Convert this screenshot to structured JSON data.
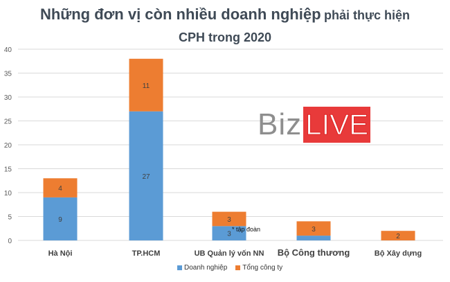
{
  "chart_data": {
    "type": "bar",
    "stacked": true,
    "title_main": "Những đơn vị còn nhiều doanh nghiệp",
    "title_rest": "phải thực hiện",
    "title_line2": "CPH trong 2020",
    "categories": [
      "Hà Nội",
      "TP.HCM",
      "UB Quản lý vốn NN",
      "Bộ Công thương",
      "Bộ Xây dựng"
    ],
    "series": [
      {
        "name": "Doanh nghiệp",
        "color": "#5b9bd5",
        "values": [
          9,
          27,
          3,
          1,
          0
        ],
        "labels": [
          "9",
          "27",
          "3",
          "",
          ""
        ]
      },
      {
        "name": "Tổng công ty",
        "color": "#ed7d31",
        "values": [
          4,
          11,
          3,
          3,
          2
        ],
        "labels": [
          "4",
          "11",
          "3",
          "3",
          "2"
        ]
      }
    ],
    "ylim": [
      0,
      40
    ],
    "yticks": [
      0,
      5,
      10,
      15,
      20,
      25,
      30,
      35,
      40
    ],
    "grid": true,
    "legend_position": "bottom",
    "annotation": "* tập đoàn",
    "watermark_biz": "Biz",
    "watermark_live": "LIVE"
  }
}
